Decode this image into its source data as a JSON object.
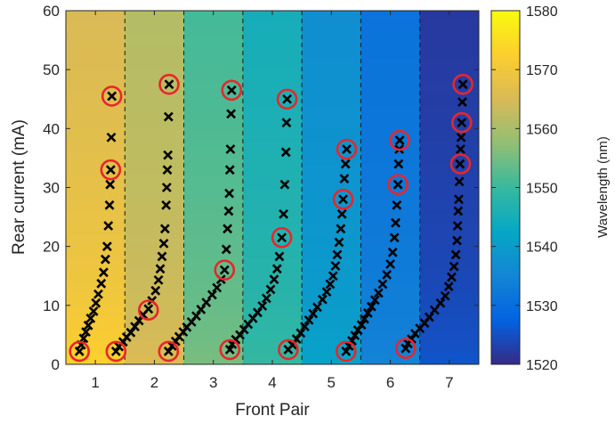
{
  "chart_data": {
    "type": "heatmap",
    "xlabel": "Front Pair",
    "ylabel": "Rear current (mA)",
    "xlim": [
      0.5,
      7.5
    ],
    "ylim": [
      0,
      60
    ],
    "x_ticks": [
      1,
      2,
      3,
      4,
      5,
      6,
      7
    ],
    "y_ticks": [
      0,
      10,
      20,
      30,
      40,
      50,
      60
    ],
    "section_boundaries": [
      1.5,
      2.5,
      3.5,
      4.5,
      5.5,
      6.5
    ],
    "colorbar": {
      "label": "Wavelength (nm)",
      "range": [
        1520,
        1580
      ],
      "ticks": [
        1520,
        1530,
        1540,
        1550,
        1560,
        1570,
        1580
      ],
      "colormap": "parula"
    },
    "section_wavelength_nm": [
      {
        "section": 1,
        "high_current": 1565,
        "low_current": 1574
      },
      {
        "section": 2,
        "high_current": 1561,
        "low_current": 1566
      },
      {
        "section": 3,
        "high_current": 1551,
        "low_current": 1556
      },
      {
        "section": 4,
        "high_current": 1545,
        "low_current": 1550
      },
      {
        "section": 5,
        "high_current": 1537,
        "low_current": 1542
      },
      {
        "section": 6,
        "high_current": 1531,
        "low_current": 1535
      },
      {
        "section": 7,
        "high_current": 1522,
        "low_current": 1526
      }
    ],
    "series": [
      {
        "marker": "x",
        "color": "#000000",
        "points": [
          [
            0.73,
            2.2
          ],
          [
            0.76,
            3.3
          ],
          [
            0.8,
            4.4
          ],
          [
            0.84,
            5.5
          ],
          [
            0.88,
            6.6
          ],
          [
            0.92,
            7.8
          ],
          [
            0.97,
            9
          ],
          [
            1.01,
            10.4
          ],
          [
            1.05,
            11.9
          ],
          [
            1.1,
            13.7
          ],
          [
            1.14,
            15.6
          ],
          [
            1.17,
            17.8
          ],
          [
            1.2,
            20
          ],
          [
            1.22,
            23.5
          ],
          [
            1.24,
            27
          ],
          [
            1.25,
            30.5
          ],
          [
            1.26,
            33
          ],
          [
            1.27,
            38.5
          ],
          [
            1.28,
            45.5
          ],
          [
            1.35,
            2.2
          ],
          [
            1.4,
            3
          ],
          [
            1.47,
            3.8
          ],
          [
            1.53,
            4.6
          ],
          [
            1.6,
            5.4
          ],
          [
            1.67,
            6.4
          ],
          [
            1.74,
            7.4
          ],
          [
            1.81,
            8.4
          ],
          [
            1.9,
            9.4
          ],
          [
            1.96,
            10.8
          ],
          [
            2.02,
            12.5
          ],
          [
            2.07,
            14.3
          ],
          [
            2.1,
            16.2
          ],
          [
            2.13,
            18.3
          ],
          [
            2.16,
            20.5
          ],
          [
            2.18,
            23
          ],
          [
            2.2,
            27
          ],
          [
            2.21,
            30
          ],
          [
            2.22,
            33
          ],
          [
            2.23,
            35.5
          ],
          [
            2.24,
            42
          ],
          [
            2.25,
            47.5
          ],
          [
            2.24,
            2.2
          ],
          [
            2.3,
            3.1
          ],
          [
            2.36,
            3.9
          ],
          [
            2.42,
            4.7
          ],
          [
            2.49,
            5.5
          ],
          [
            2.55,
            6.3
          ],
          [
            2.63,
            7.2
          ],
          [
            2.71,
            8.2
          ],
          [
            2.79,
            9.3
          ],
          [
            2.88,
            10.5
          ],
          [
            2.98,
            11.8
          ],
          [
            3.06,
            13
          ],
          [
            3.13,
            14.4
          ],
          [
            3.19,
            16
          ],
          [
            3.22,
            19.5
          ],
          [
            3.24,
            23
          ],
          [
            3.26,
            26
          ],
          [
            3.27,
            29
          ],
          [
            3.28,
            33
          ],
          [
            3.29,
            36.5
          ],
          [
            3.3,
            42.5
          ],
          [
            3.31,
            46.5
          ],
          [
            3.28,
            2.5
          ],
          [
            3.32,
            3.4
          ],
          [
            3.38,
            4.2
          ],
          [
            3.45,
            5
          ],
          [
            3.52,
            5.9
          ],
          [
            3.59,
            6.8
          ],
          [
            3.67,
            7.8
          ],
          [
            3.75,
            8.8
          ],
          [
            3.83,
            9.9
          ],
          [
            3.9,
            11.2
          ],
          [
            3.97,
            12.7
          ],
          [
            4.03,
            14.4
          ],
          [
            4.08,
            16.2
          ],
          [
            4.12,
            18.3
          ],
          [
            4.16,
            21.5
          ],
          [
            4.19,
            25.5
          ],
          [
            4.21,
            30.5
          ],
          [
            4.23,
            36
          ],
          [
            4.24,
            41
          ],
          [
            4.25,
            45
          ],
          [
            4.27,
            2.5
          ],
          [
            4.34,
            3.3
          ],
          [
            4.41,
            4.3
          ],
          [
            4.48,
            5.3
          ],
          [
            4.55,
            6.4
          ],
          [
            4.62,
            7.5
          ],
          [
            4.69,
            8.6
          ],
          [
            4.76,
            9.7
          ],
          [
            4.85,
            11
          ],
          [
            4.92,
            12.3
          ],
          [
            4.98,
            13.6
          ],
          [
            5.03,
            15
          ],
          [
            5.07,
            16.7
          ],
          [
            5.1,
            18.6
          ],
          [
            5.13,
            20.7
          ],
          [
            5.16,
            23
          ],
          [
            5.18,
            25.5
          ],
          [
            5.2,
            28
          ],
          [
            5.22,
            31.5
          ],
          [
            5.24,
            34
          ],
          [
            5.26,
            36.5
          ],
          [
            5.25,
            2.2
          ],
          [
            5.3,
            3.1
          ],
          [
            5.35,
            4
          ],
          [
            5.4,
            4.9
          ],
          [
            5.45,
            5.8
          ],
          [
            5.51,
            6.7
          ],
          [
            5.56,
            7.7
          ],
          [
            5.62,
            8.7
          ],
          [
            5.68,
            9.8
          ],
          [
            5.74,
            10.9
          ],
          [
            5.8,
            12.1
          ],
          [
            5.87,
            13.6
          ],
          [
            5.94,
            15.2
          ],
          [
            6,
            17
          ],
          [
            6.04,
            19
          ],
          [
            6.07,
            21.5
          ],
          [
            6.09,
            24
          ],
          [
            6.11,
            27
          ],
          [
            6.13,
            30.5
          ],
          [
            6.14,
            34
          ],
          [
            6.15,
            36.5
          ],
          [
            6.16,
            38
          ],
          [
            6.26,
            2.7
          ],
          [
            6.3,
            3.5
          ],
          [
            6.36,
            4.3
          ],
          [
            6.42,
            5.2
          ],
          [
            6.5,
            6.1
          ],
          [
            6.58,
            7
          ],
          [
            6.66,
            8
          ],
          [
            6.75,
            9.2
          ],
          [
            6.85,
            10.4
          ],
          [
            6.93,
            11.6
          ],
          [
            6.99,
            13.2
          ],
          [
            7.04,
            14.8
          ],
          [
            7.08,
            16.6
          ],
          [
            7.11,
            18.6
          ],
          [
            7.13,
            21
          ],
          [
            7.14,
            23.5
          ],
          [
            7.15,
            26
          ],
          [
            7.16,
            28
          ],
          [
            7.17,
            31
          ],
          [
            7.18,
            34
          ],
          [
            7.19,
            36.5
          ],
          [
            7.2,
            38.5
          ],
          [
            7.21,
            41
          ],
          [
            7.22,
            44.5
          ],
          [
            7.23,
            47.5
          ]
        ]
      },
      {
        "marker": "circle",
        "color": "#e8262b",
        "points": [
          [
            0.73,
            2.2
          ],
          [
            1.26,
            33
          ],
          [
            1.28,
            45.5
          ],
          [
            1.35,
            2.2
          ],
          [
            1.9,
            9.2
          ],
          [
            2.25,
            47.5
          ],
          [
            2.24,
            2.2
          ],
          [
            3.19,
            16
          ],
          [
            3.31,
            46.5
          ],
          [
            3.28,
            2.5
          ],
          [
            4.16,
            21.5
          ],
          [
            4.25,
            45
          ],
          [
            4.27,
            2.5
          ],
          [
            5.2,
            28
          ],
          [
            5.26,
            36.5
          ],
          [
            5.25,
            2.2
          ],
          [
            6.13,
            30.5
          ],
          [
            6.16,
            38
          ],
          [
            6.26,
            2.7
          ],
          [
            7.19,
            34
          ],
          [
            7.21,
            41
          ],
          [
            7.23,
            47.5
          ]
        ]
      }
    ]
  }
}
